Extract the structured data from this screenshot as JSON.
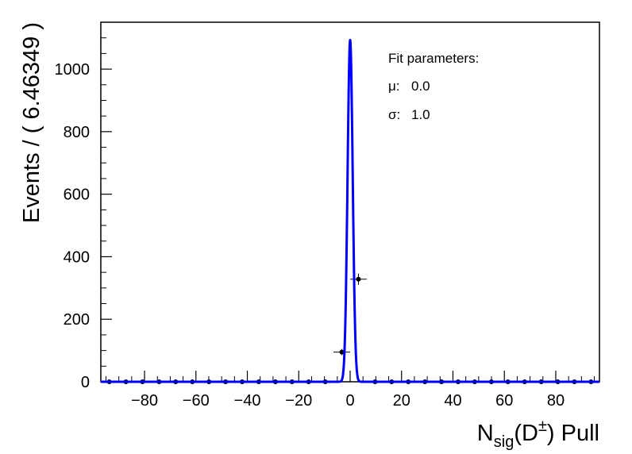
{
  "chart_data": {
    "type": "scatter",
    "title": "",
    "xlabel": {
      "main": "N",
      "sub": "sig",
      "mid": "(D",
      "sup": "±",
      "tail": ") Pull"
    },
    "ylabel": "Events / ( 6.46349 )",
    "xlim": [
      -97,
      97
    ],
    "ylim": [
      0,
      1150
    ],
    "x_ticks": [
      -80,
      -60,
      -40,
      -20,
      0,
      20,
      40,
      60,
      80
    ],
    "y_ticks": [
      0,
      200,
      400,
      600,
      800,
      1000
    ],
    "bin_width": 6.46349,
    "series": [
      {
        "kind": "points",
        "x": [
          -93.72,
          -87.26,
          -80.79,
          -74.33,
          -67.87,
          -61.4,
          -54.94,
          -48.47,
          -42.01,
          -35.55,
          -29.08,
          -22.62,
          -16.16,
          -9.69,
          -3.23,
          3.23,
          9.69,
          16.16,
          22.62,
          29.08,
          35.55,
          42.01,
          48.47,
          54.94,
          61.4,
          67.87,
          74.33,
          80.79,
          87.26,
          93.72
        ],
        "y": [
          0,
          0,
          0,
          0,
          0,
          0,
          0,
          0,
          0,
          0,
          0,
          0,
          0,
          0,
          95,
          328,
          0,
          0,
          0,
          0,
          0,
          0,
          0,
          0,
          0,
          0,
          0,
          0,
          0,
          0
        ],
        "yerr": [
          0,
          0,
          0,
          0,
          0,
          0,
          0,
          0,
          0,
          0,
          0,
          0,
          0,
          0,
          10,
          18,
          0,
          0,
          0,
          0,
          0,
          0,
          0,
          0,
          0,
          0,
          0,
          0,
          0,
          0
        ],
        "color": "#000000"
      },
      {
        "kind": "gaussian-fit",
        "mean": 0.0,
        "sigma": 1.0,
        "peak": 1093,
        "color": "#0000ff"
      }
    ],
    "legend": {
      "position": "top-right",
      "header": "Fit parameters:",
      "entries": [
        {
          "symbol": "μ:",
          "value": "0.0"
        },
        {
          "symbol": "σ:",
          "value": "1.0"
        }
      ]
    },
    "grid": false
  }
}
